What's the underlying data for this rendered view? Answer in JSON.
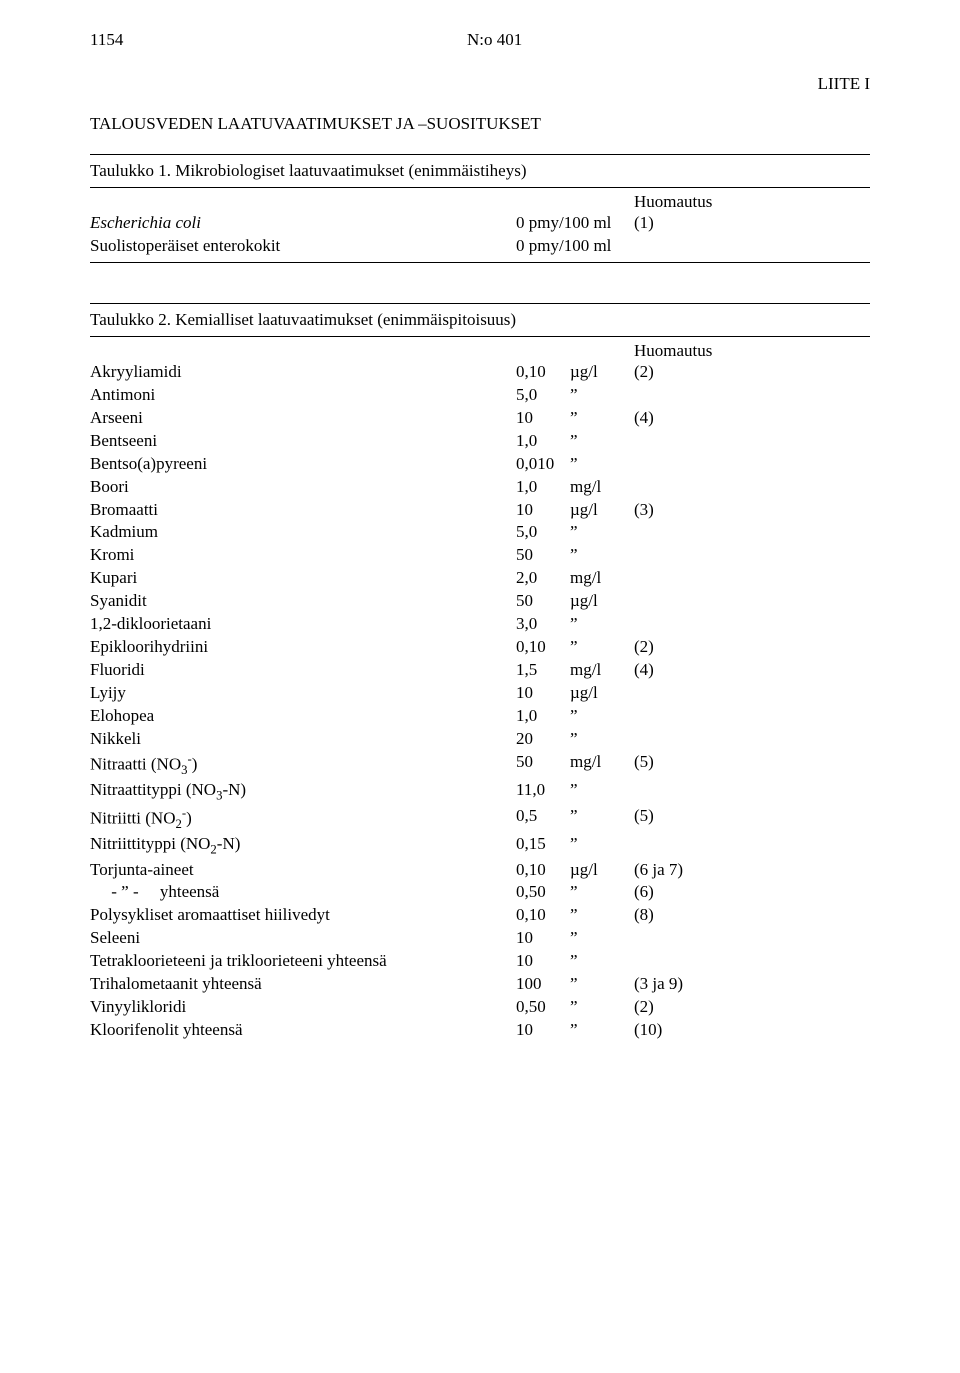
{
  "header": {
    "page_number": "1154",
    "doc_number": "N:o 401",
    "annex": "LIITE I"
  },
  "title": "TALOUSVEDEN LAATUVAATIMUKSET JA –SUOSITUKSET",
  "table1": {
    "caption": "Taulukko 1. Mikrobiologiset laatuvaatimukset (enimmäistiheys)",
    "note_header": "Huomautus",
    "rows": [
      {
        "name": "Escherichia coli",
        "value": "0 pmy/100 ml",
        "note": "(1)",
        "italic": true
      },
      {
        "name": "Suolistoperäiset enterokokit",
        "value": "0 pmy/100 ml",
        "note": "",
        "italic": false
      }
    ]
  },
  "table2": {
    "caption": "Taulukko 2. Kemialliset laatuvaatimukset (enimmäispitoisuus)",
    "note_header": "Huomautus",
    "rows": [
      {
        "name": "Akryyliamidi",
        "value": "0,10",
        "unit": "µg/l",
        "note": "(2)"
      },
      {
        "name": "Antimoni",
        "value": "5,0",
        "unit": "”",
        "note": ""
      },
      {
        "name": "Arseeni",
        "value": "10",
        "unit": "”",
        "note": "(4)"
      },
      {
        "name": "Bentseeni",
        "value": "1,0",
        "unit": "”",
        "note": ""
      },
      {
        "name": "Bentso(a)pyreeni",
        "value": "0,010",
        "unit": "”",
        "note": ""
      },
      {
        "name": "Boori",
        "value": "1,0",
        "unit": "mg/l",
        "note": ""
      },
      {
        "name": "Bromaatti",
        "value": "10",
        "unit": "µg/l",
        "note": "(3)"
      },
      {
        "name": "Kadmium",
        "value": "5,0",
        "unit": "”",
        "note": ""
      },
      {
        "name": "Kromi",
        "value": "50",
        "unit": "”",
        "note": ""
      },
      {
        "name": "Kupari",
        "value": "2,0",
        "unit": "mg/l",
        "note": ""
      },
      {
        "name": "Syanidit",
        "value": "50",
        "unit": "µg/l",
        "note": ""
      },
      {
        "name": "1,2-dikloorietaani",
        "value": "3,0",
        "unit": "”",
        "note": ""
      },
      {
        "name": "Epikloorihydriini",
        "value": "0,10",
        "unit": "”",
        "note": "(2)"
      },
      {
        "name": "Fluoridi",
        "value": "1,5",
        "unit": "mg/l",
        "note": "(4)"
      },
      {
        "name": "Lyijy",
        "value": "10",
        "unit": "µg/l",
        "note": ""
      },
      {
        "name": "Elohopea",
        "value": "1,0",
        "unit": "”",
        "note": ""
      },
      {
        "name": "Nikkeli",
        "value": "20",
        "unit": "”",
        "note": ""
      },
      {
        "name_html": "Nitraatti (NO<span class='sub'>3</span><span class='sup'>-</span>)",
        "value": "50",
        "unit": "mg/l",
        "note": "(5)"
      },
      {
        "name_html": "Nitraattityppi (NO<span class='sub'>3</span>-N)",
        "value": "11,0",
        "unit": "”",
        "note": ""
      },
      {
        "name_html": "Nitriitti (NO<span class='sub'>2</span><span class='sup'>-</span>)",
        "value": "0,5",
        "unit": "”",
        "note": "(5)"
      },
      {
        "name_html": "Nitriittityppi (NO<span class='sub'>2</span>-N)",
        "value": "0,15",
        "unit": "”",
        "note": ""
      },
      {
        "name": "Torjunta-aineet",
        "value": "0,10",
        "unit": "µg/l",
        "note": "(6 ja 7)"
      },
      {
        "name": "     - ” -     yhteensä",
        "value": "0,50",
        "unit": "”",
        "note": "(6)"
      },
      {
        "name": "Polysykliset aromaattiset hiilivedyt",
        "value": "0,10",
        "unit": "”",
        "note": "(8)"
      },
      {
        "name": "Seleeni",
        "value": "10",
        "unit": "”",
        "note": ""
      },
      {
        "name": "Tetrakloorieteeni ja trikloorieteeni yhteensä",
        "value": "10",
        "unit": "”",
        "note": ""
      },
      {
        "name": "Trihalometaanit yhteensä",
        "value": "100",
        "unit": "”",
        "note": "(3 ja 9)"
      },
      {
        "name": "Vinyylikloridi",
        "value": "0,50",
        "unit": "”",
        "note": "(2)"
      },
      {
        "name": "Kloorifenolit yhteensä",
        "value": "10",
        "unit": "”",
        "note": "(10)"
      }
    ]
  }
}
